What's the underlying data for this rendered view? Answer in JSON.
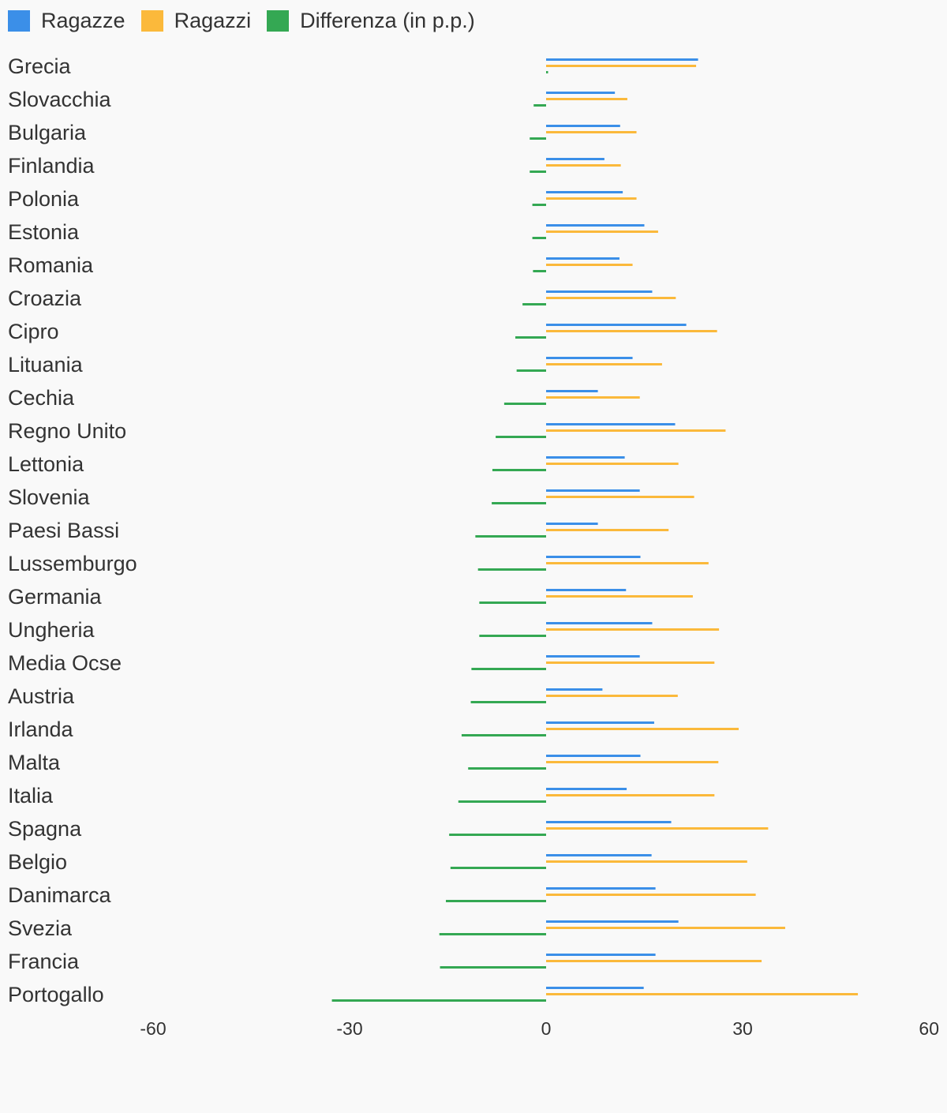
{
  "chart_data": {
    "type": "bar",
    "orientation": "horizontal",
    "categories": [
      "Grecia",
      "Slovacchia",
      "Bulgaria",
      "Finlandia",
      "Polonia",
      "Estonia",
      "Romania",
      "Croazia",
      "Cipro",
      "Lituania",
      "Cechia",
      "Regno Unito",
      "Lettonia",
      "Slovenia",
      "Paesi Bassi",
      "Lussemburgo",
      "Germania",
      "Ungheria",
      "Media Ocse",
      "Austria",
      "Irlanda",
      "Malta",
      "Italia",
      "Spagna",
      "Belgio",
      "Danimarca",
      "Svezia",
      "Francia",
      "Portogallo"
    ],
    "series": [
      {
        "name": "Ragazze",
        "color": "#3b8fe8",
        "values": [
          23.2,
          10.5,
          11.3,
          8.9,
          11.7,
          15.0,
          11.2,
          16.2,
          21.4,
          13.2,
          7.9,
          19.7,
          12.0,
          14.3,
          7.9,
          14.4,
          12.2,
          16.2,
          14.3,
          8.6,
          16.5,
          14.4,
          12.3,
          19.1,
          16.1,
          16.7,
          20.2,
          16.7,
          14.9
        ]
      },
      {
        "name": "Ragazzi",
        "color": "#fbb93b",
        "values": [
          22.9,
          12.4,
          13.8,
          11.4,
          13.8,
          17.1,
          13.2,
          19.8,
          26.1,
          17.7,
          14.3,
          27.4,
          20.2,
          22.6,
          18.7,
          24.8,
          22.4,
          26.4,
          25.7,
          20.1,
          29.4,
          26.3,
          25.7,
          33.9,
          30.7,
          32.0,
          36.5,
          32.9,
          47.6
        ]
      },
      {
        "name": "Differenza (in p.p.)",
        "color": "#34a853",
        "values": [
          0.3,
          -1.9,
          -2.5,
          -2.5,
          -2.1,
          -2.1,
          -2.0,
          -3.6,
          -4.7,
          -4.5,
          -6.4,
          -7.7,
          -8.2,
          -8.3,
          -10.8,
          -10.4,
          -10.2,
          -10.2,
          -11.4,
          -11.5,
          -12.9,
          -11.9,
          -13.4,
          -14.8,
          -14.6,
          -15.3,
          -16.3,
          -16.2,
          -32.7
        ]
      }
    ],
    "xlim": [
      -60,
      60
    ],
    "xticks": [
      "-60",
      "-30",
      "0",
      "30",
      "60"
    ],
    "xlabel": "",
    "ylabel": "",
    "title": "",
    "grid": false,
    "legend_position": "top-left"
  }
}
